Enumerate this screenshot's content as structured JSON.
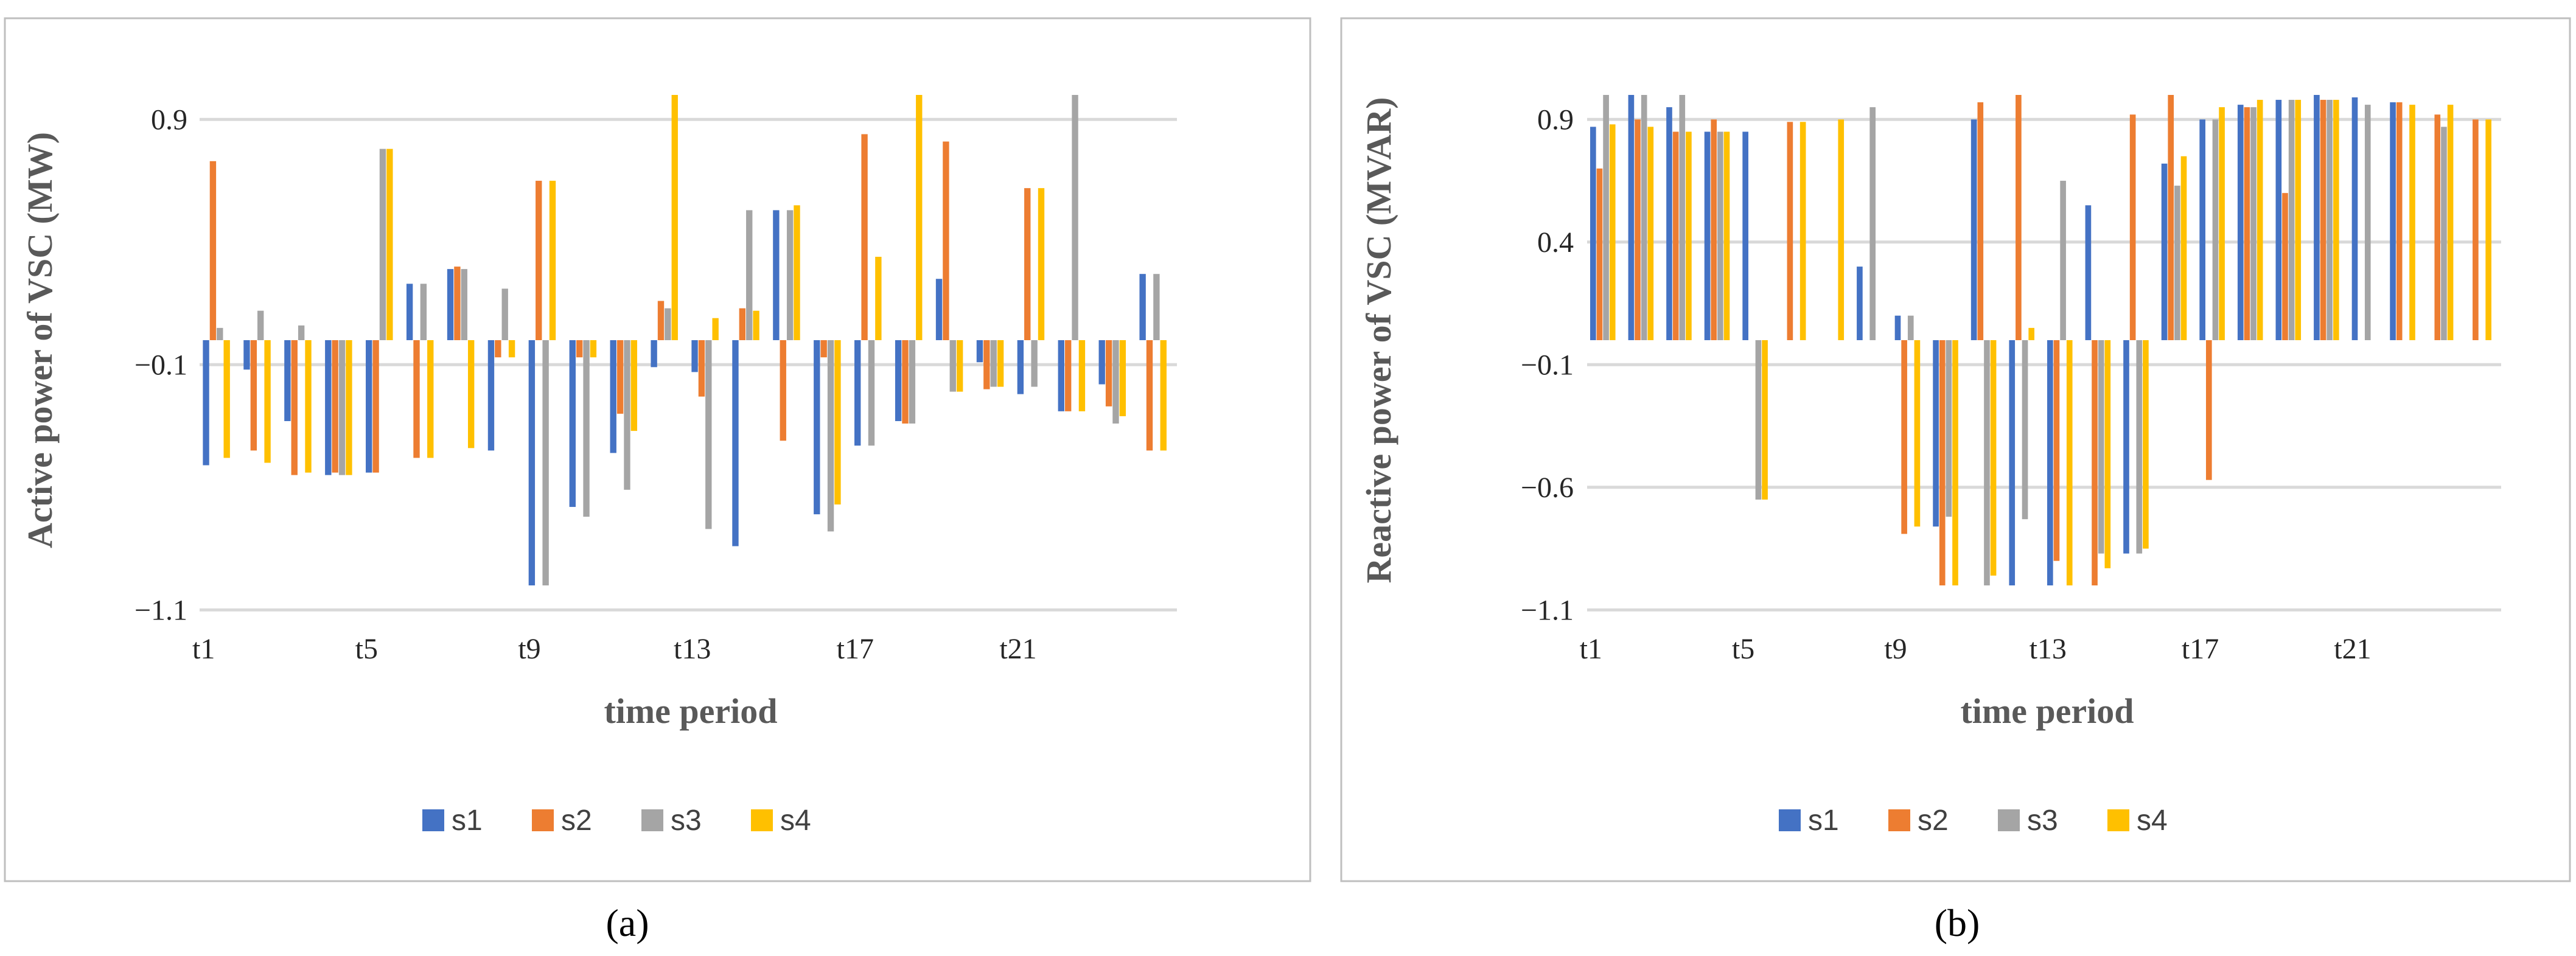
{
  "colors": {
    "s1": "#4472C4",
    "s2": "#ED7D31",
    "s3": "#A5A5A5",
    "s4": "#FFC000",
    "grid": "#D9D9D9",
    "frame": "#BFBFBF"
  },
  "chart_data": [
    {
      "type": "bar",
      "panel_label": "(a)",
      "ylabel": "Active power of VSC (MW)",
      "xlabel": "time period",
      "ylim": [
        -1.1,
        0.9
      ],
      "yticks": [
        0.9,
        -0.1,
        -1.1
      ],
      "yticklabels": [
        "0.9",
        "−0.1",
        "−1.1"
      ],
      "baseline": 0,
      "grid": true,
      "legend_position": "bottom",
      "categories": [
        "t1",
        "t2",
        "t3",
        "t4",
        "t5",
        "t6",
        "t7",
        "t8",
        "t9",
        "t10",
        "t11",
        "t12",
        "t13",
        "t14",
        "t15",
        "t16",
        "t17",
        "t18",
        "t19",
        "t20",
        "t21",
        "t22",
        "t23",
        "t24"
      ],
      "category_labels_shown": {
        "0": "t1",
        "4": "t5",
        "8": "t9",
        "12": "t13",
        "16": "t17",
        "20": "t21"
      },
      "series": [
        {
          "name": "s1",
          "values": [
            -0.51,
            -0.12,
            -0.33,
            -0.55,
            -0.54,
            0.23,
            0.29,
            -0.45,
            -1.0,
            -0.68,
            -0.46,
            -0.11,
            -0.13,
            -0.84,
            0.53,
            -0.71,
            -0.43,
            -0.33,
            0.25,
            -0.09,
            -0.22,
            -0.29,
            -0.18,
            0.27
          ]
        },
        {
          "name": "s2",
          "values": [
            0.73,
            -0.45,
            -0.55,
            -0.54,
            -0.54,
            -0.48,
            0.3,
            -0.07,
            0.65,
            -0.07,
            -0.3,
            0.16,
            -0.23,
            0.13,
            -0.41,
            -0.07,
            0.84,
            -0.34,
            0.81,
            -0.2,
            0.62,
            -0.29,
            -0.27,
            -0.45
          ]
        },
        {
          "name": "s3",
          "values": [
            0.05,
            0.12,
            0.06,
            -0.55,
            0.78,
            0.23,
            0.29,
            0.21,
            -1.0,
            -0.72,
            -0.61,
            0.13,
            -0.77,
            0.53,
            0.53,
            -0.78,
            -0.43,
            -0.34,
            -0.21,
            -0.19,
            -0.19,
            1.0,
            -0.34,
            0.27
          ]
        },
        {
          "name": "s4",
          "values": [
            -0.48,
            -0.5,
            -0.54,
            -0.55,
            0.78,
            -0.48,
            -0.44,
            -0.07,
            0.65,
            -0.07,
            -0.37,
            1.0,
            0.09,
            0.12,
            0.55,
            -0.67,
            0.34,
            1.0,
            -0.21,
            -0.19,
            0.62,
            -0.29,
            -0.31,
            -0.45
          ]
        }
      ]
    },
    {
      "type": "bar",
      "panel_label": "(b)",
      "ylabel": "Reactive power of VSC (MVAR)",
      "xlabel": "time period",
      "ylim": [
        -1.1,
        0.9
      ],
      "yticks": [
        0.9,
        0.4,
        -0.1,
        -0.6,
        -1.1
      ],
      "yticklabels": [
        "0.9",
        "0.4",
        "−0.1",
        "−0.6",
        "−1.1"
      ],
      "baseline": 0,
      "grid": true,
      "legend_position": "bottom",
      "categories": [
        "t1",
        "t2",
        "t3",
        "t4",
        "t5",
        "t6",
        "t7",
        "t8",
        "t9",
        "t10",
        "t11",
        "t12",
        "t13",
        "t14",
        "t15",
        "t16",
        "t17",
        "t18",
        "t19",
        "t20",
        "t21",
        "t22",
        "t23",
        "t24"
      ],
      "category_labels_shown": {
        "0": "t1",
        "4": "t5",
        "8": "t9",
        "12": "t13",
        "16": "t17",
        "20": "t21"
      },
      "series": [
        {
          "name": "s1",
          "values": [
            0.87,
            1.0,
            0.95,
            0.85,
            0.85,
            0,
            0,
            0.3,
            0.1,
            -0.76,
            0.9,
            -1.0,
            -1.0,
            0.55,
            -0.87,
            0.72,
            0.9,
            0.96,
            0.98,
            1.0,
            0.99,
            0.97,
            0,
            0
          ]
        },
        {
          "name": "s2",
          "values": [
            0.7,
            0.9,
            0.85,
            0.9,
            0,
            0.89,
            0,
            0,
            -0.79,
            -1.0,
            0.97,
            1.0,
            -0.9,
            -1.0,
            0.92,
            1.0,
            -0.57,
            0.95,
            0.6,
            0.98,
            0,
            0.97,
            0.92,
            0.9
          ]
        },
        {
          "name": "s3",
          "values": [
            1.0,
            1.0,
            1.0,
            0.85,
            -0.65,
            0,
            0,
            0.95,
            0.1,
            -0.72,
            -1.0,
            -0.73,
            0.65,
            -0.87,
            -0.87,
            0.63,
            0.9,
            0.95,
            0.98,
            0.98,
            0.96,
            0,
            0.87,
            0
          ]
        },
        {
          "name": "s4",
          "values": [
            0.88,
            0.87,
            0.85,
            0.85,
            -0.65,
            0.89,
            0.9,
            0,
            -0.76,
            -1.0,
            -0.96,
            0.05,
            -1.0,
            -0.93,
            -0.85,
            0.75,
            0.95,
            0.98,
            0.98,
            0.98,
            0,
            0.96,
            0.96,
            0.9
          ]
        }
      ]
    }
  ]
}
